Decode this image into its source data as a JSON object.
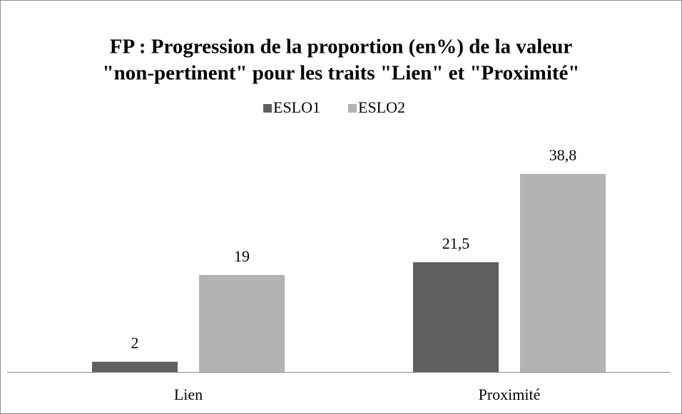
{
  "chart_data": {
    "type": "bar",
    "title": [
      "FP : Progression de la proportion (en%) de la valeur",
      "\"non-pertinent\" pour les traits \"Lien\" et \"Proximité\""
    ],
    "categories": [
      "Lien",
      "Proximité"
    ],
    "series": [
      {
        "name": "ESLO1",
        "color": "#606060",
        "values": [
          2,
          21.5
        ],
        "value_labels": [
          "2",
          "21,5"
        ]
      },
      {
        "name": "ESLO2",
        "color": "#b3b3b3",
        "values": [
          19,
          38.8
        ],
        "value_labels": [
          "19",
          "38,8"
        ]
      }
    ],
    "legend": "top"
  }
}
